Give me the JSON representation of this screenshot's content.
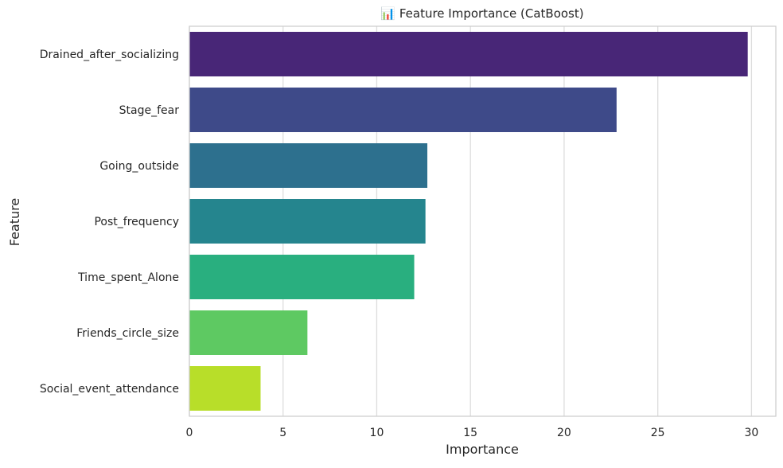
{
  "chart_data": {
    "type": "bar",
    "orientation": "horizontal",
    "title": "📊 Feature Importance (CatBoost)",
    "xlabel": "Importance",
    "ylabel": "Feature",
    "xlim": [
      0,
      31.3
    ],
    "xticks": [
      0,
      5,
      10,
      15,
      20,
      25,
      30
    ],
    "grid": true,
    "categories": [
      "Drained_after_socializing",
      "Stage_fear",
      "Going_outside",
      "Post_frequency",
      "Time_spent_Alone",
      "Friends_circle_size",
      "Social_event_attendance"
    ],
    "values": [
      29.8,
      22.8,
      12.7,
      12.6,
      12.0,
      6.3,
      3.8
    ],
    "colors": [
      "#482677",
      "#3E4A89",
      "#2D708E",
      "#25858E",
      "#29AF7F",
      "#5EC962",
      "#B8DE29"
    ]
  }
}
